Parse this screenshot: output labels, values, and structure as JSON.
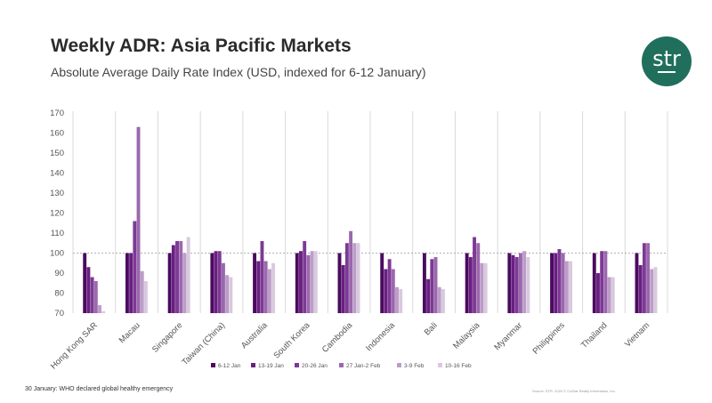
{
  "header": {
    "title": "Weekly ADR: Asia Pacific Markets",
    "subtitle": "Absolute Average Daily Rate Index (USD, indexed for 6-12 January)"
  },
  "logo": {
    "text": "str",
    "color": "#1f6f5c"
  },
  "footer": {
    "note": "30 January: WHO declared global healthy emergency",
    "source": "Source: STR. 2020 © CoStar Realty Information, Inc."
  },
  "chart_data": {
    "type": "bar",
    "ylim": [
      70,
      170
    ],
    "yticks": [
      70,
      80,
      90,
      100,
      110,
      120,
      130,
      140,
      150,
      160,
      170
    ],
    "reference_line": 100,
    "grid": "vertical separators between categories",
    "legend_position": "bottom",
    "categories": [
      "Hong Kong SAR",
      "Macau",
      "Singapore",
      "Taiwan (China)",
      "Australia",
      "South Korea",
      "Cambodia",
      "Indonesia",
      "Bali",
      "Malaysia",
      "Myanmar",
      "Philippines",
      "Thailand",
      "Vietnam"
    ],
    "series": [
      {
        "name": "6-12 Jan",
        "color": "#4a0a5e",
        "values": [
          100,
          100,
          100,
          100,
          100,
          100,
          100,
          100,
          100,
          100,
          100,
          100,
          100,
          100
        ]
      },
      {
        "name": "13-19 Jan",
        "color": "#6a1f82",
        "values": [
          93,
          100,
          104,
          101,
          96,
          101,
          94,
          92,
          87,
          98,
          99,
          100,
          90,
          94
        ]
      },
      {
        "name": "20-26 Jan",
        "color": "#7c3a94",
        "values": [
          88,
          116,
          106,
          101,
          106,
          106,
          105,
          97,
          97,
          108,
          98,
          102,
          101,
          105
        ]
      },
      {
        "name": "27 Jan-2 Feb",
        "color": "#9b67ad",
        "values": [
          86,
          163,
          106,
          95,
          96,
          99,
          111,
          92,
          98,
          105,
          100,
          100,
          101,
          105
        ]
      },
      {
        "name": "3-9 Feb",
        "color": "#bb9dc7",
        "values": [
          74,
          91,
          100,
          89,
          92,
          101,
          105,
          83,
          83,
          95,
          101,
          96,
          88,
          92
        ]
      },
      {
        "name": "10-16 Feb",
        "color": "#d9c9df",
        "values": [
          71,
          86,
          108,
          88,
          95,
          101,
          105,
          82,
          82,
          95,
          98,
          96,
          88,
          93
        ]
      }
    ]
  }
}
